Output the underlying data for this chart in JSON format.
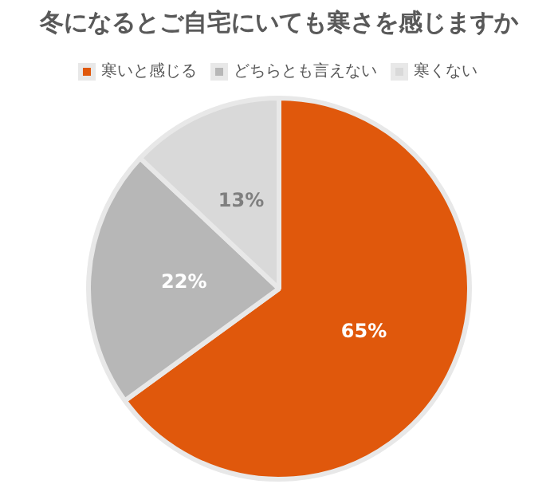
{
  "chart_data": {
    "type": "pie",
    "title": "冬になるとご自宅にいても寒さを感じますか",
    "categories": [
      "寒いと感じる",
      "どちらとも言えない",
      "寒くない"
    ],
    "values": [
      65,
      22,
      13
    ],
    "colors": [
      "#e0580c",
      "#b7b7b7",
      "#d9d9d9"
    ],
    "value_labels": [
      "65%",
      "22%",
      "13%"
    ],
    "legend": "top"
  }
}
